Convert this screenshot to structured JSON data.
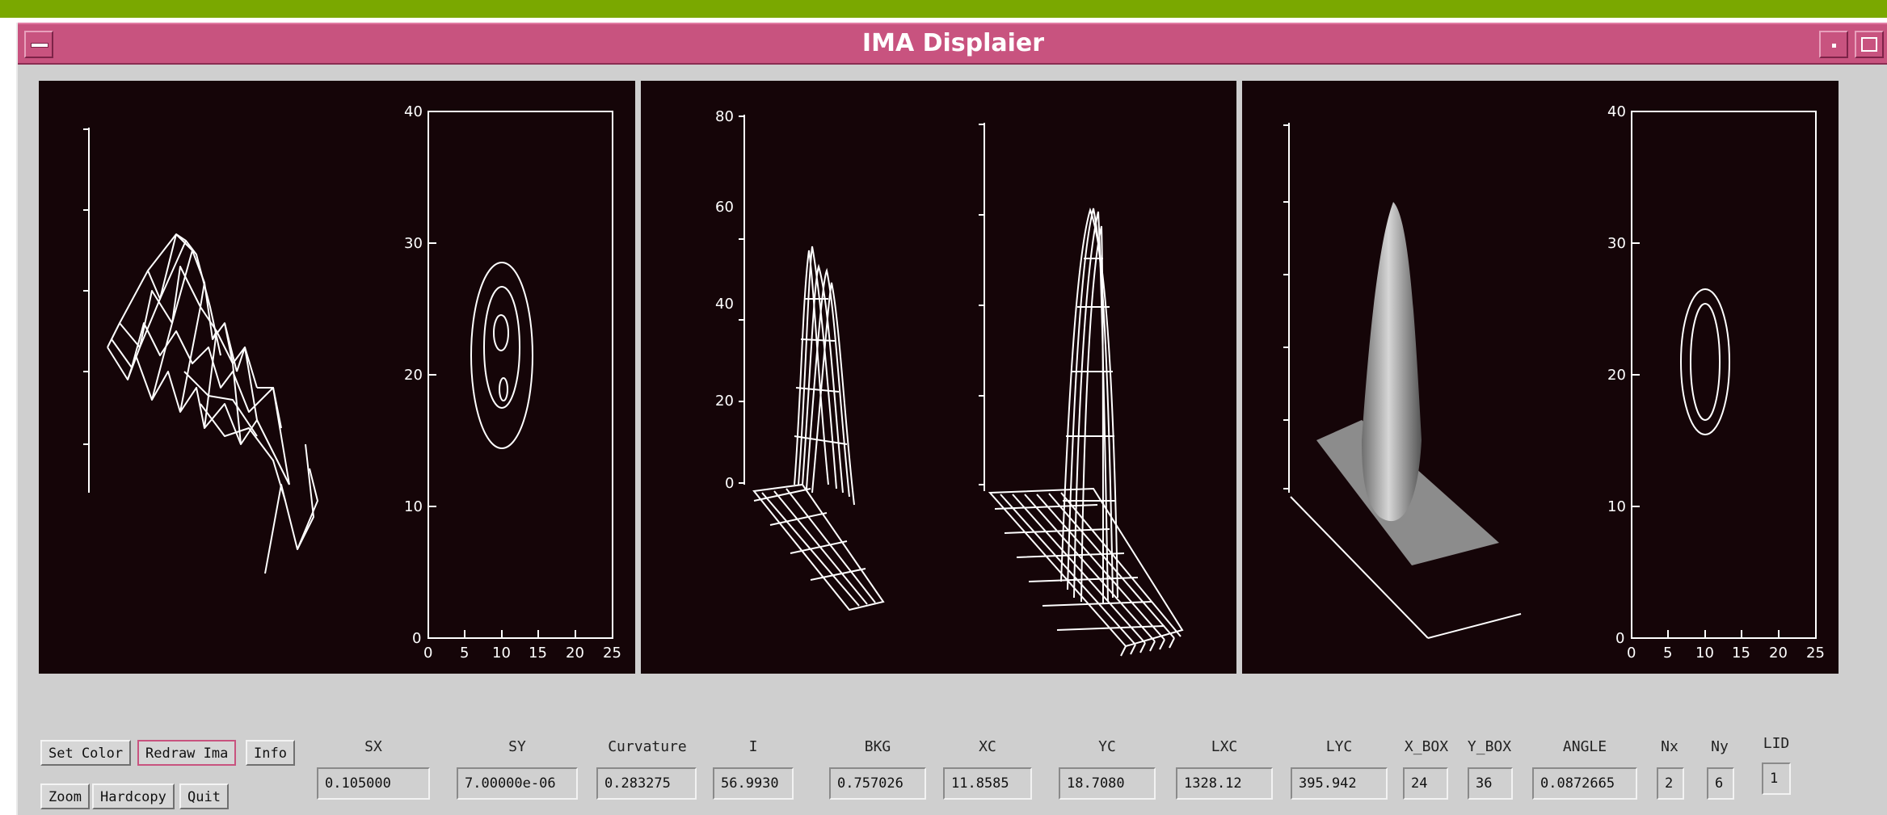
{
  "window": {
    "title": "IMA Displaier"
  },
  "buttons": {
    "set_color": "Set Color",
    "redraw": "Redraw Ima",
    "info": "Info",
    "zoom": "Zoom",
    "hardcopy": "Hardcopy",
    "quit": "Quit"
  },
  "fields": [
    {
      "label": "SX",
      "value": "0.105000"
    },
    {
      "label": "SY",
      "value": "7.00000e-06"
    },
    {
      "label": "Curvature",
      "value": "0.283275"
    },
    {
      "label": "I",
      "value": "56.9930"
    },
    {
      "label": "BKG",
      "value": "0.757026"
    },
    {
      "label": "XC",
      "value": "11.8585"
    },
    {
      "label": "YC",
      "value": "18.7080"
    },
    {
      "label": "LXC",
      "value": "1328.12"
    },
    {
      "label": "LYC",
      "value": "395.942"
    },
    {
      "label": "X_BOX",
      "value": "24"
    },
    {
      "label": "Y_BOX",
      "value": "36"
    },
    {
      "label": "ANGLE",
      "value": "0.0872665"
    },
    {
      "label": "Nx",
      "value": "2"
    },
    {
      "label": "Ny",
      "value": "6"
    },
    {
      "label": "LID",
      "value": "1"
    }
  ],
  "contour_axis": {
    "x_ticks": [
      "0",
      "5",
      "10",
      "15",
      "20",
      "25"
    ],
    "y_ticks": [
      "0",
      "10",
      "20",
      "30",
      "40"
    ]
  },
  "surface_axis": {
    "z_ticks": [
      "0",
      "20",
      "40",
      "60",
      "80"
    ]
  },
  "colors": {
    "title_bar": "#c8537f",
    "plot_background": "#150508",
    "top_strip": "#7aa800"
  }
}
